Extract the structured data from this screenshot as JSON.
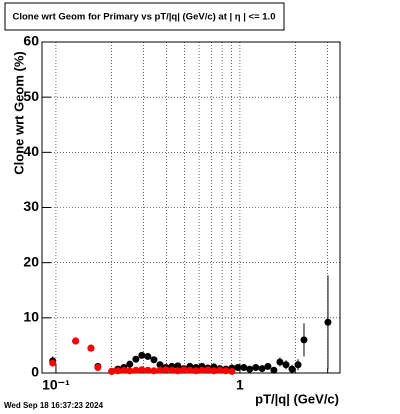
{
  "chart_data": {
    "type": "scatter",
    "title": "Clone wrt Geom for Primary vs pT/|q| (GeV/c) at |  η | <= 1.0",
    "xlabel": "pT/|q| (GeV/c)",
    "ylabel": "Clone wrt Geom (%)",
    "timestamp": "Wed Sep 18 16:37:23 2024",
    "log_x": true,
    "grid": true,
    "xlim": [
      0.084,
      3.5
    ],
    "ylim": [
      0,
      60
    ],
    "xticks": [
      {
        "value": 0.1,
        "label": "10⁻¹"
      },
      {
        "value": 1,
        "label": "1"
      }
    ],
    "xminor_ticks": [
      0.2,
      0.3,
      0.4,
      0.5,
      0.6,
      0.7,
      0.8,
      0.9,
      2,
      3
    ],
    "yticks": [
      0,
      10,
      20,
      30,
      40,
      50,
      60
    ],
    "series": [
      {
        "color": "#000000",
        "x": [
          0.096,
          0.128,
          0.155,
          0.169,
          0.201,
          0.217,
          0.234,
          0.252,
          0.272,
          0.293,
          0.316,
          0.341,
          0.368,
          0.396,
          0.427,
          0.46,
          0.496,
          0.535,
          0.577,
          0.622,
          0.67,
          0.722,
          0.778,
          0.839,
          0.905,
          0.975,
          1.05,
          1.13,
          1.22,
          1.32,
          1.42,
          1.53,
          1.65,
          1.78,
          1.92,
          2.07,
          2.23,
          3.01
        ],
        "values": [
          2.2,
          5.8,
          4.5,
          1.2,
          0.3,
          0.7,
          1.0,
          1.6,
          2.5,
          3.2,
          3.0,
          2.4,
          1.5,
          1.0,
          1.2,
          1.3,
          0.8,
          1.2,
          1.0,
          1.2,
          0.9,
          1.1,
          0.8,
          0.7,
          0.9,
          1.0,
          1.0,
          0.7,
          1.0,
          0.8,
          1.2,
          0.5,
          2.0,
          1.5,
          0.7,
          1.5,
          6.0,
          9.2
        ],
        "errors": [
          0.8,
          0.6,
          0.6,
          0.5,
          0.3,
          0.3,
          0.3,
          0.4,
          0.4,
          0.4,
          0.4,
          0.4,
          0.3,
          0.3,
          0.3,
          0.3,
          0.3,
          0.3,
          0.3,
          0.3,
          0.3,
          0.3,
          0.3,
          0.3,
          0.3,
          0.4,
          0.4,
          0.4,
          0.4,
          0.5,
          0.5,
          0.5,
          0.8,
          0.8,
          0.8,
          1.0,
          3.0,
          8.5
        ]
      },
      {
        "color": "#ff0000",
        "x": [
          0.096,
          0.128,
          0.155,
          0.169,
          0.201,
          0.217,
          0.234,
          0.252,
          0.272,
          0.293,
          0.316,
          0.341,
          0.368,
          0.396,
          0.427,
          0.46,
          0.496,
          0.535,
          0.577,
          0.622,
          0.67,
          0.722,
          0.778,
          0.839,
          0.905
        ],
        "values": [
          1.8,
          5.8,
          4.5,
          1.0,
          0.3,
          0.4,
          0.5,
          0.4,
          0.5,
          0.6,
          0.5,
          0.4,
          0.5,
          0.6,
          0.5,
          0.4,
          0.6,
          0.5,
          0.4,
          0.5,
          0.6,
          0.4,
          0.5,
          0.4,
          0.3
        ]
      }
    ]
  }
}
